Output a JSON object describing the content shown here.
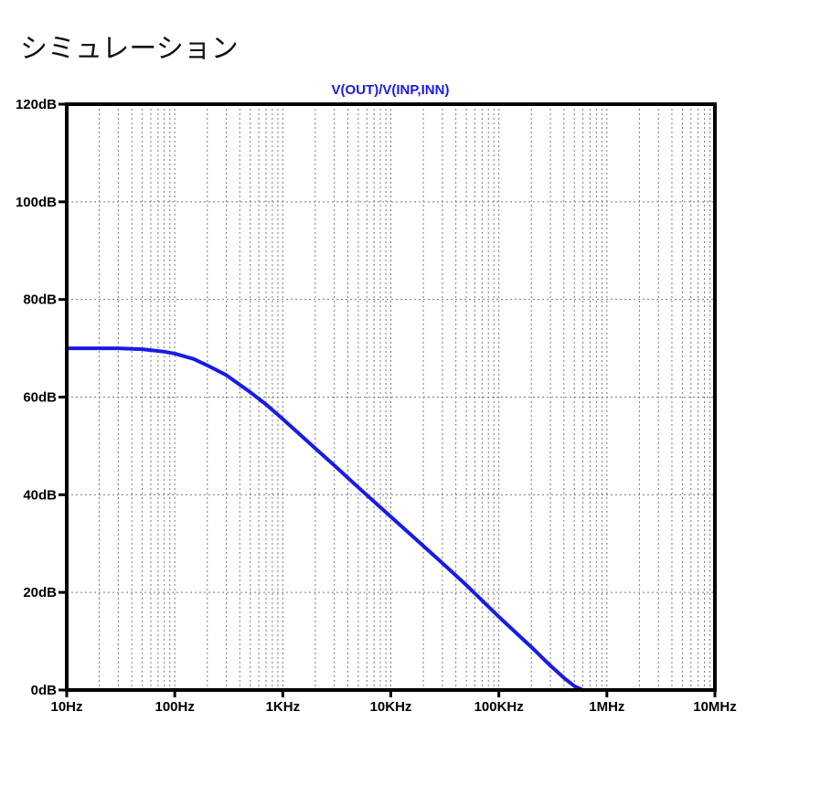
{
  "page": {
    "heading": "シミュレーション"
  },
  "chart_data": {
    "type": "line",
    "title": "V(OUT)/V(INP,INN)",
    "xlabel": "",
    "ylabel": "",
    "x_scale": "log",
    "xlim": [
      10,
      10000000
    ],
    "ylim": [
      0,
      120
    ],
    "x_ticks": [
      10,
      100,
      1000,
      10000,
      100000,
      1000000,
      10000000
    ],
    "x_tick_labels": [
      "10Hz",
      "100Hz",
      "1KHz",
      "10KHz",
      "100KHz",
      "1MHz",
      "10MHz"
    ],
    "y_ticks": [
      0,
      20,
      40,
      60,
      80,
      100,
      120
    ],
    "y_tick_labels": [
      "0dB",
      "20dB",
      "40dB",
      "60dB",
      "80dB",
      "100dB",
      "120dB"
    ],
    "grid": true,
    "legend": "none",
    "series": [
      {
        "name": "V(OUT)/V(INP,INN)",
        "color": "#1a1ae6",
        "x": [
          10,
          20,
          30,
          50,
          80,
          100,
          150,
          200,
          300,
          500,
          700,
          1000,
          2000,
          3000,
          5000,
          10000,
          20000,
          30000,
          50000,
          100000,
          200000,
          300000,
          400000,
          500000,
          600000
        ],
        "y": [
          70,
          70,
          70,
          69.8,
          69.3,
          68.9,
          67.8,
          66.5,
          64.5,
          61,
          58.5,
          55.5,
          49.5,
          46,
          41.5,
          35.5,
          29.5,
          26,
          21.5,
          15,
          8.8,
          5,
          2.5,
          0.8,
          -0.5
        ]
      }
    ]
  }
}
